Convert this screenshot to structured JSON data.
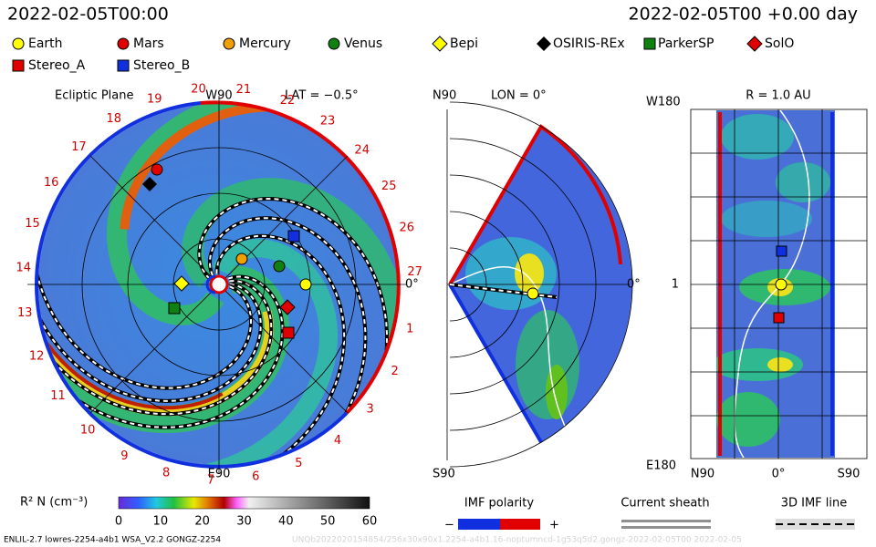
{
  "header": {
    "left": "2022-02-05T00:00",
    "right": "2022-02-05T00 +0.00 day"
  },
  "legend": [
    "Earth",
    "Mars",
    "Mercury",
    "Venus",
    "Bepi",
    "OSIRIS-REx",
    "ParkerSP",
    "SolO",
    "Stereo_A",
    "Stereo_B"
  ],
  "ecliptic": {
    "title": "Ecliptic Plane",
    "top": "W90",
    "lat": "LAT = −0.5°",
    "east": "0°",
    "bottom": "E90",
    "ticks": [
      "1",
      "2",
      "3",
      "4",
      "5",
      "6",
      "7",
      "8",
      "9",
      "10",
      "11",
      "12",
      "13",
      "14",
      "15",
      "16",
      "17",
      "18",
      "19",
      "20",
      "21",
      "22",
      "23",
      "24",
      "25",
      "26",
      "27"
    ]
  },
  "meridional": {
    "top": "N90",
    "lon": "LON = 0°",
    "east": "0°",
    "bottom": "S90"
  },
  "sphere": {
    "title": "R = 1.0 AU",
    "top": "W180",
    "mid": "1",
    "bottom": "E180",
    "xlabels": [
      "N90",
      "0°",
      "S90"
    ]
  },
  "colorbar": {
    "label": "R² N (cm⁻³)",
    "ticks": [
      "0",
      "10",
      "20",
      "30",
      "40",
      "50",
      "60"
    ]
  },
  "imf": {
    "title": "IMF polarity",
    "minus": "−",
    "plus": "+"
  },
  "sheath": "Current sheath",
  "imfline": "3D IMF line",
  "footer": {
    "left": "ENLIL-2.7 lowres-2254-a4b1 WSA_V2.2 GONGZ-2254",
    "right": "UNQb2022020154854/256x30x90x1.2254-a4b1.16-noptumncd-1g53q5d2.gongz-2022-02-05T00 2022-02-05"
  }
}
